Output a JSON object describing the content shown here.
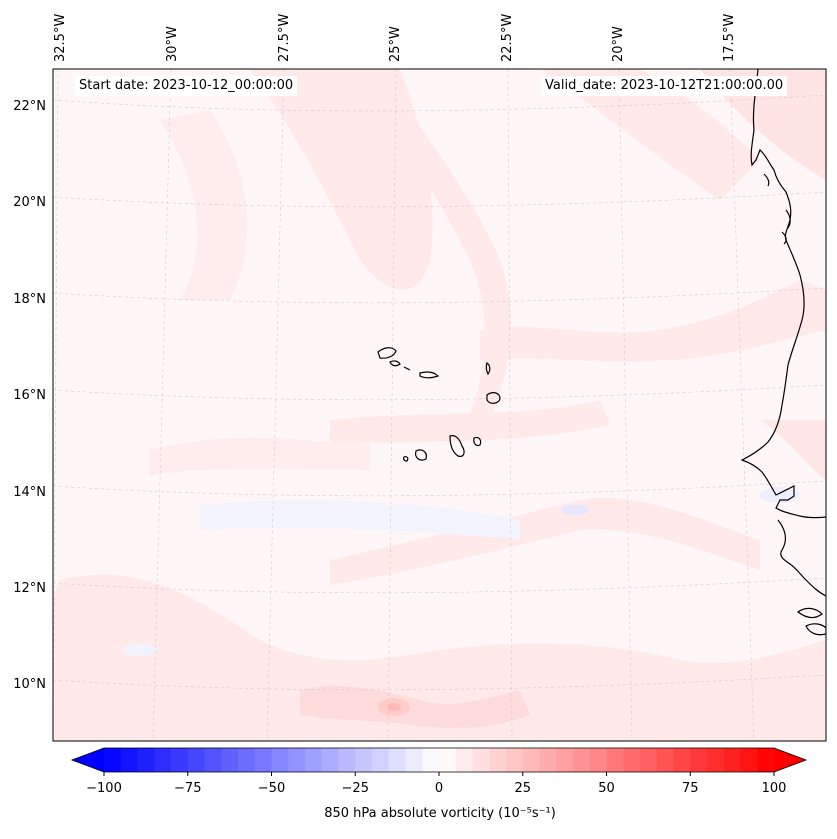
{
  "map": {
    "start_date": "Start date: 2023-10-12_00:00:00",
    "valid_date": "Valid_date: 2023-10-12T21:00:00.00",
    "lon_labels": [
      "32.5°W",
      "30°W",
      "27.5°W",
      "25°W",
      "22.5°W",
      "20°W",
      "17.5°W"
    ],
    "lat_labels": [
      "22°N",
      "20°N",
      "18°N",
      "16°N",
      "14°N",
      "12°N",
      "10°N"
    ],
    "field_colors": {
      "weak_positive": "#ffe9e9",
      "moderate_positive": "#ffd4d4",
      "background": "#fff7f7",
      "weak_negative": "#f3f3ff"
    },
    "coastline_color": "#000000",
    "gridline_color": "#cccccc"
  },
  "colorbar": {
    "label": "850 hPa absolute vorticity (10⁻⁵s⁻¹)",
    "min": -100,
    "max": 100,
    "tick_values": [
      -100,
      -75,
      -50,
      -25,
      0,
      25,
      50,
      75,
      100
    ],
    "tick_labels": [
      "−100",
      "−75",
      "−50",
      "−25",
      "0",
      "25",
      "50",
      "75",
      "100"
    ],
    "colormap": "bwr",
    "negative_color": "#0000ff",
    "zero_color": "#ffffff",
    "positive_color": "#ff0000"
  }
}
